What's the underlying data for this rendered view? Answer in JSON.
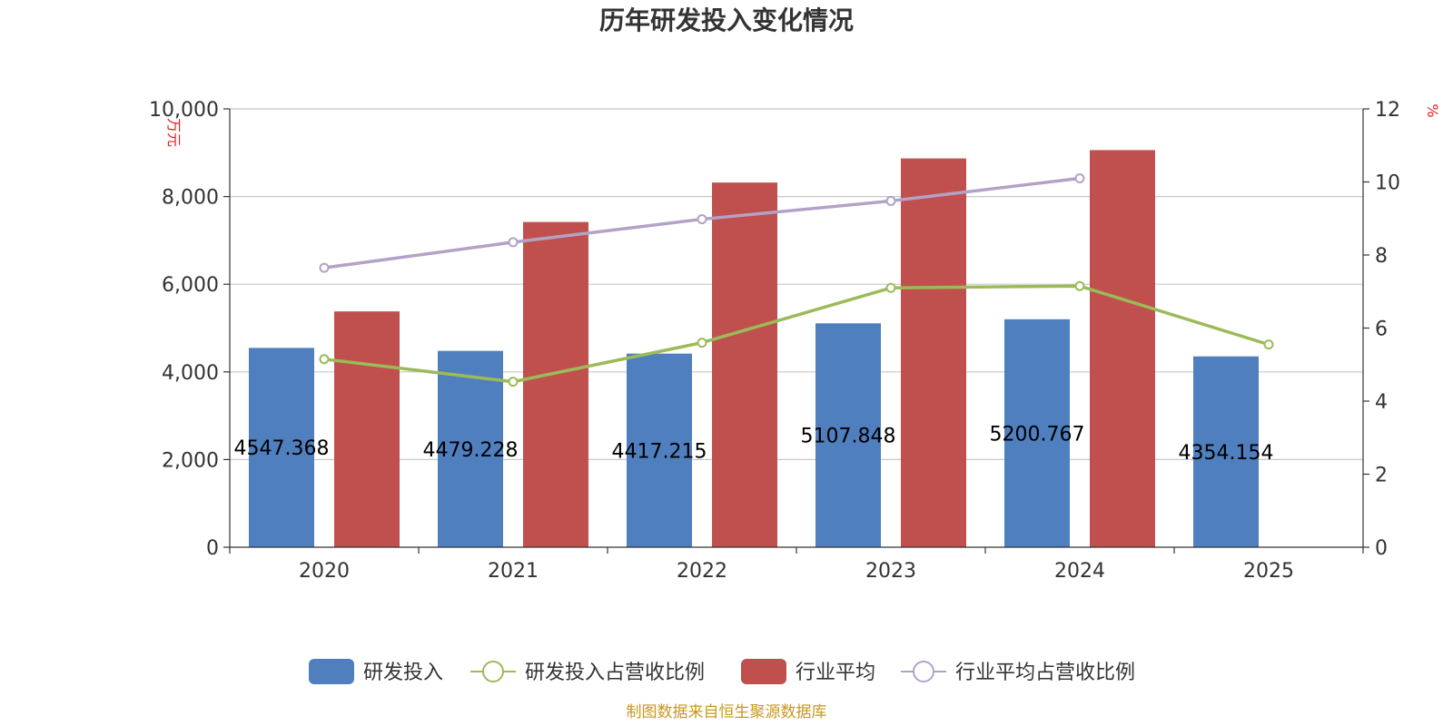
{
  "chart_data": {
    "type": "bar",
    "title": "历年研发投入变化情况",
    "categories": [
      "2020",
      "2021",
      "2022",
      "2023",
      "2024",
      "2025"
    ],
    "left_axis": {
      "unit_label": "万元",
      "min": 0,
      "max": 10000,
      "ticks": [
        "0",
        "2,000",
        "4,000",
        "6,000",
        "8,000",
        "10,000"
      ]
    },
    "right_axis": {
      "unit_label": "%",
      "min": 0,
      "max": 12,
      "ticks": [
        "0",
        "2",
        "4",
        "6",
        "8",
        "10",
        "12"
      ]
    },
    "grid": true,
    "legend_position": "bottom",
    "series": [
      {
        "name": "研发投入",
        "type": "bar",
        "axis": "left",
        "color": "#4f7fbe",
        "values": [
          4547.368,
          4479.228,
          4417.215,
          5107.848,
          5200.767,
          4354.154
        ],
        "labels": [
          "4547.368",
          "4479.228",
          "4417.215",
          "5107.848",
          "5200.767",
          "4354.154"
        ]
      },
      {
        "name": "研发投入占营收比例",
        "type": "line",
        "axis": "right",
        "color": "#9bbb59",
        "values": [
          5.15,
          4.53,
          5.6,
          7.1,
          7.15,
          5.55
        ]
      },
      {
        "name": "行业平均",
        "type": "bar",
        "axis": "left",
        "color": "#c0504d",
        "values": [
          5380,
          7420,
          8320,
          8870,
          9060,
          null
        ]
      },
      {
        "name": "行业平均占营收比例",
        "type": "line",
        "axis": "right",
        "color": "#b3a2c7",
        "values": [
          7.65,
          8.35,
          8.98,
          9.48,
          10.1,
          null
        ]
      }
    ],
    "source": "制图数据来自恒生聚源数据库"
  }
}
